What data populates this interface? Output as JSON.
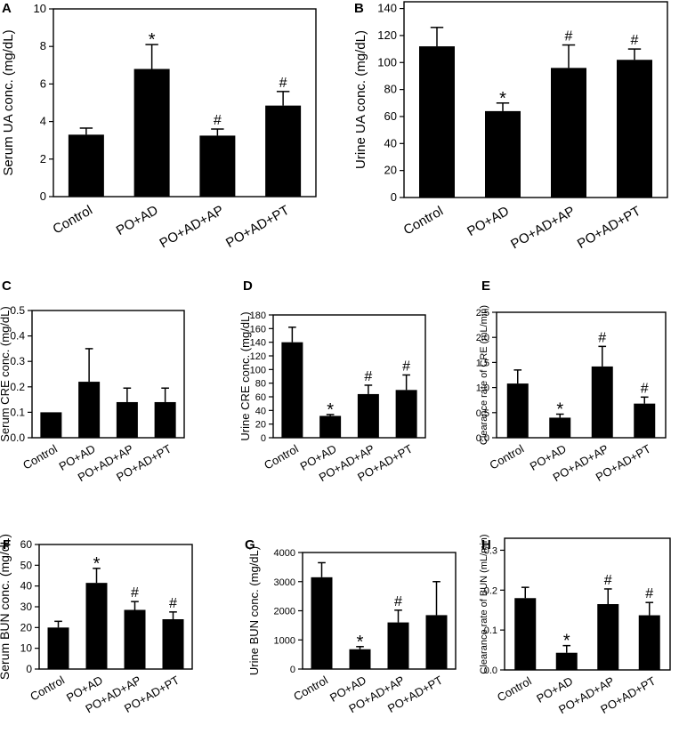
{
  "figure": {
    "colors": {
      "bar": "#000000",
      "axis": "#000000",
      "background": "#ffffff"
    }
  },
  "chart_data": [
    {
      "panel": "A",
      "type": "bar",
      "categories": [
        "Control",
        "PO+AD",
        "PO+AD+AP",
        "PO+AD+PT"
      ],
      "values": [
        3.3,
        6.8,
        3.25,
        4.85
      ],
      "errors": [
        0.35,
        1.3,
        0.35,
        0.75
      ],
      "significance": [
        "",
        "*",
        "#",
        "#"
      ],
      "ylabel": "Serum UA conc. (mg/dL)",
      "ylim": [
        0,
        10
      ],
      "yticks": [
        0,
        2,
        4,
        6,
        8,
        10
      ],
      "tick_labels": [
        "0",
        "2",
        "4",
        "6",
        "8",
        "10"
      ]
    },
    {
      "panel": "B",
      "type": "bar",
      "categories": [
        "Control",
        "PO+AD",
        "PO+AD+AP",
        "PO+AD+PT"
      ],
      "values": [
        112,
        64,
        96,
        102
      ],
      "errors": [
        14,
        6,
        17,
        8
      ],
      "significance": [
        "",
        "*",
        "#",
        "#"
      ],
      "ylabel": "Urine UA conc. (mg/dL)",
      "ylim": [
        0,
        145
      ],
      "yticks": [
        0,
        20,
        40,
        60,
        80,
        100,
        120,
        140
      ],
      "tick_labels": [
        "0",
        "20",
        "40",
        "60",
        "80",
        "100",
        "120",
        "140"
      ]
    },
    {
      "panel": "C",
      "type": "bar",
      "categories": [
        "Control",
        "PO+AD",
        "PO+AD+AP",
        "PO+AD+PT"
      ],
      "values": [
        0.1,
        0.22,
        0.14,
        0.14
      ],
      "errors": [
        0,
        0.13,
        0.055,
        0.055
      ],
      "significance": [
        "",
        "",
        "",
        ""
      ],
      "ylabel": "Serum CRE conc. (mg/dL)",
      "ylim": [
        0,
        0.5
      ],
      "yticks": [
        0,
        0.1,
        0.2,
        0.3,
        0.4,
        0.5
      ],
      "tick_labels": [
        "0.0",
        "0.1",
        "0.2",
        "0.3",
        "0.4",
        "0.5"
      ]
    },
    {
      "panel": "D",
      "type": "bar",
      "categories": [
        "Control",
        "PO+AD",
        "PO+AD+AP",
        "PO+AD+PT"
      ],
      "values": [
        140,
        32,
        64,
        70
      ],
      "errors": [
        22,
        2,
        13,
        22
      ],
      "significance": [
        "",
        "*",
        "#",
        "#"
      ],
      "ylabel": "Urine CRE conc. (mg/dL)",
      "ylim": [
        0,
        180
      ],
      "yticks": [
        0,
        20,
        40,
        60,
        80,
        100,
        120,
        140,
        160,
        180
      ],
      "tick_labels": [
        "0",
        "20",
        "40",
        "60",
        "80",
        "100",
        "120",
        "140",
        "160",
        "180"
      ]
    },
    {
      "panel": "E",
      "type": "bar",
      "categories": [
        "Control",
        "PO+AD",
        "PO+AD+AP",
        "PO+AD+PT"
      ],
      "values": [
        1.08,
        0.4,
        1.42,
        0.68
      ],
      "errors": [
        0.27,
        0.07,
        0.4,
        0.13
      ],
      "significance": [
        "",
        "*",
        "#",
        "#"
      ],
      "ylabel": "Clearance rate of CRE (mL/min)",
      "ylim": [
        0,
        2.5
      ],
      "yticks": [
        0,
        0.5,
        1,
        1.5,
        2,
        2.5
      ],
      "tick_labels": [
        "0.0",
        "0.5",
        "1.0",
        "1.5",
        "2.0",
        "2.5"
      ]
    },
    {
      "panel": "F",
      "type": "bar",
      "categories": [
        "Control",
        "PO+AD",
        "PO+AD+AP",
        "PO+AD+PT"
      ],
      "values": [
        20,
        41.5,
        28.5,
        24
      ],
      "errors": [
        3,
        7,
        4,
        3.5
      ],
      "significance": [
        "",
        "*",
        "#",
        "#"
      ],
      "ylabel": "Serum BUN conc. (mg/dL)",
      "ylim": [
        0,
        60
      ],
      "yticks": [
        0,
        10,
        20,
        30,
        40,
        50,
        60
      ],
      "tick_labels": [
        "0",
        "10",
        "20",
        "30",
        "40",
        "50",
        "60"
      ]
    },
    {
      "panel": "G",
      "type": "bar",
      "categories": [
        "Control",
        "PO+AD",
        "PO+AD+AP",
        "PO+AD+PT"
      ],
      "values": [
        3150,
        680,
        1600,
        1850
      ],
      "errors": [
        500,
        90,
        420,
        1150
      ],
      "significance": [
        "",
        "*",
        "#",
        ""
      ],
      "ylabel": "Urine BUN conc. (mg/dL)",
      "ylim": [
        0,
        4000
      ],
      "yticks": [
        0,
        1000,
        2000,
        3000,
        4000
      ],
      "tick_labels": [
        "0",
        "1000",
        "2000",
        "3000",
        "4000"
      ]
    },
    {
      "panel": "H",
      "type": "bar",
      "categories": [
        "Control",
        "PO+AD",
        "PO+AD+AP",
        "PO+AD+PT"
      ],
      "values": [
        0.18,
        0.043,
        0.165,
        0.137
      ],
      "errors": [
        0.027,
        0.018,
        0.038,
        0.032
      ],
      "significance": [
        "",
        "*",
        "#",
        "#"
      ],
      "ylabel": "Clearance rate of BUN (mL/min)",
      "ylim": [
        0,
        0.33
      ],
      "yticks": [
        0,
        0.1,
        0.2,
        0.3
      ],
      "tick_labels": [
        "0.0",
        "0.1",
        "0.2",
        "0.3"
      ]
    }
  ]
}
